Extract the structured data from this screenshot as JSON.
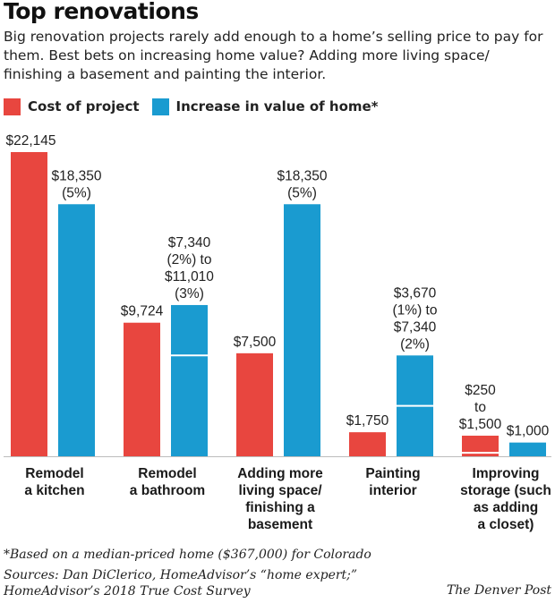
{
  "header": {
    "title": "Top renovations",
    "subtitle": "Big renovation projects rarely add enough to a home’s selling price to pay for them. Best bets on increasing home value? Adding more living space/ finishing a basement and painting the interior."
  },
  "legend": [
    {
      "label": "Cost of project",
      "color": "#e8463f"
    },
    {
      "label": "Increase in value of home*",
      "color": "#1a9bd0"
    }
  ],
  "chart_data": {
    "type": "bar",
    "title": "Top renovations",
    "categories": [
      [
        "Remodel",
        "a kitchen"
      ],
      [
        "Remodel",
        "a bathroom"
      ],
      [
        "Adding more",
        "living space/",
        "finishing a",
        "basement"
      ],
      [
        "Painting",
        "interior"
      ],
      [
        "Improving",
        "storage (such",
        "as adding",
        "a closet)"
      ]
    ],
    "ylim": [
      0,
      22145
    ],
    "series": [
      {
        "name": "Cost of project",
        "color": "#e8463f",
        "bars": [
          {
            "low": 22145,
            "high": 22145,
            "label": [
              "$22,145"
            ]
          },
          {
            "low": 9724,
            "high": 9724,
            "label": [
              "$9,724"
            ]
          },
          {
            "low": 7500,
            "high": 7500,
            "label": [
              "$7,500"
            ]
          },
          {
            "low": 1750,
            "high": 1750,
            "label": [
              "$1,750"
            ]
          },
          {
            "low": 250,
            "high": 1500,
            "label": [
              "$250",
              "to",
              "$1,500"
            ]
          }
        ]
      },
      {
        "name": "Increase in value of home*",
        "color": "#1a9bd0",
        "bars": [
          {
            "low": 18350,
            "high": 18350,
            "label": [
              "$18,350",
              "(5%)"
            ]
          },
          {
            "low": 7340,
            "high": 11010,
            "label": [
              "$7,340",
              "(2%) to",
              "$11,010",
              "(3%)"
            ]
          },
          {
            "low": 18350,
            "high": 18350,
            "label": [
              "$18,350",
              "(5%)"
            ]
          },
          {
            "low": 3670,
            "high": 7340,
            "label": [
              "$3,670",
              "(1%) to",
              "$7,340",
              "(2%)"
            ]
          },
          {
            "low": 1000,
            "high": 1000,
            "label": [
              "$1,000"
            ]
          }
        ]
      }
    ]
  },
  "footer": {
    "footnote": "*Based on a median-priced home ($367,000) for Colorado",
    "sources_line1": "Sources:  Dan DiClerico, HomeAdvisor’s “home expert;”",
    "sources_line2": "HomeAdvisor’s 2018 True Cost Survey",
    "credit": "The Denver Post"
  }
}
